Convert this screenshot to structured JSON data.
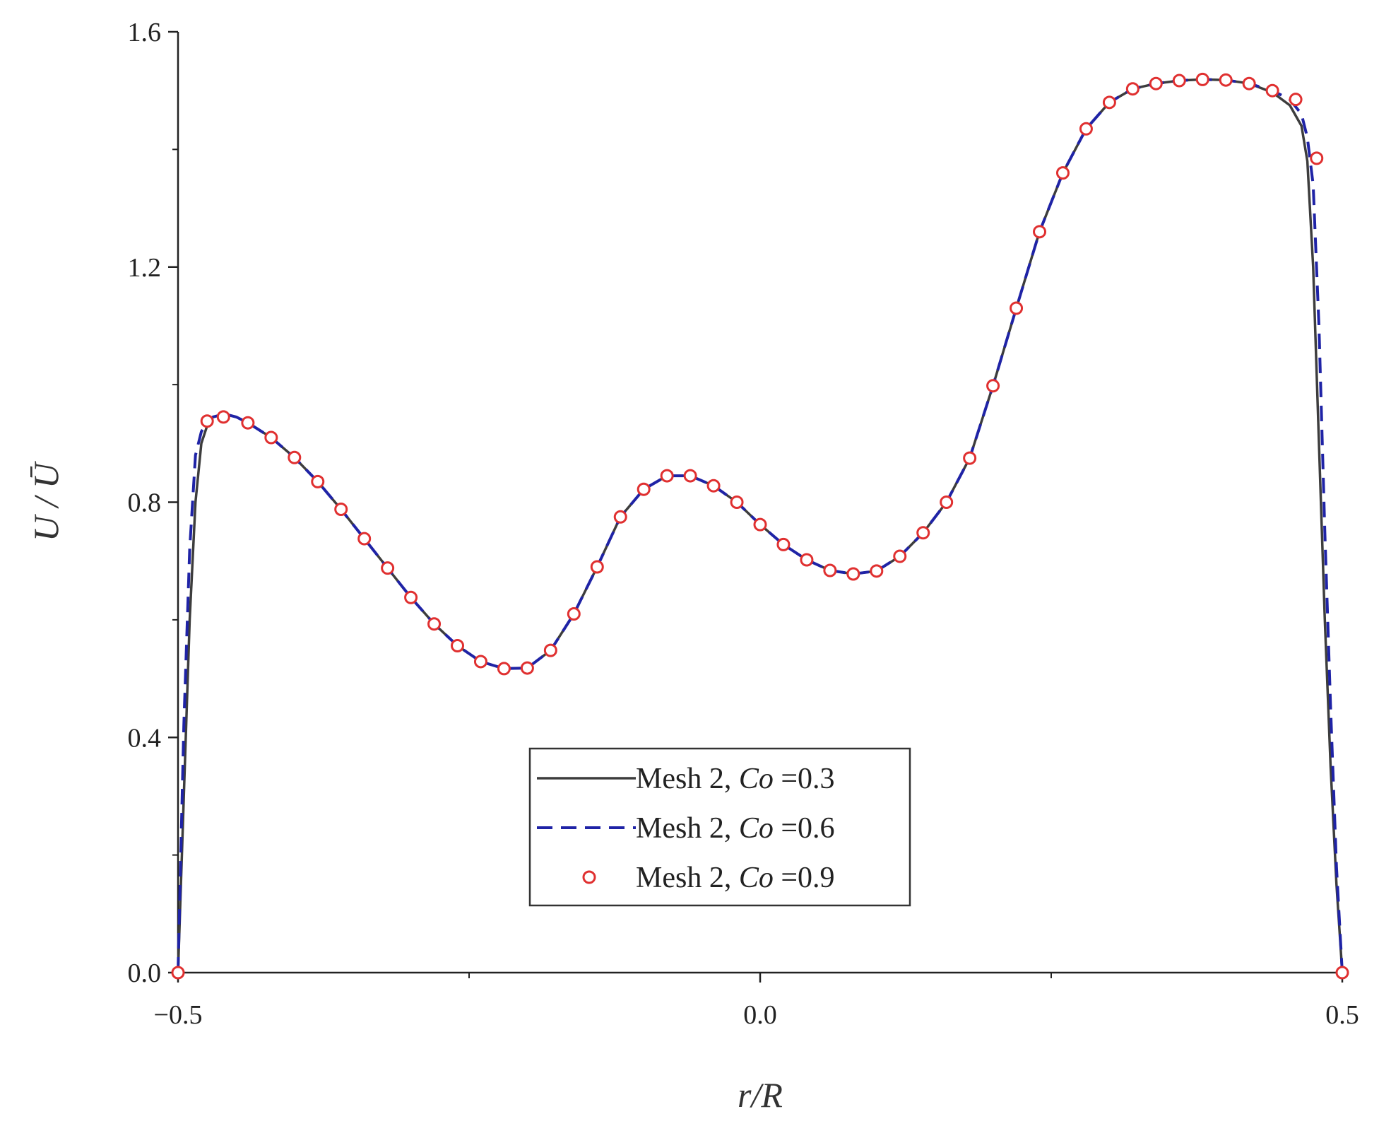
{
  "chart_data": {
    "type": "line",
    "xlabel": "r/R",
    "ylabel": "U / Ū",
    "xlim": [
      -0.5,
      0.5
    ],
    "ylim": [
      0.0,
      1.6
    ],
    "xticks": [
      "−0.5",
      "0.0",
      "0.5"
    ],
    "xtick_values": [
      -0.5,
      0.0,
      0.5
    ],
    "x_minor_ticks": [
      -0.25,
      0.25
    ],
    "yticks": [
      "0.0",
      "0.4",
      "0.8",
      "1.2",
      "1.6"
    ],
    "ytick_values": [
      0.0,
      0.4,
      0.8,
      1.2,
      1.6
    ],
    "y_minor_ticks": [
      0.2,
      0.6,
      1.0,
      1.4
    ],
    "grid": false,
    "legend_position": "bottom-center",
    "series": [
      {
        "name": "Mesh 2, Co =0.3",
        "label_prefix": "Mesh 2, ",
        "label_italic": "Co",
        "label_suffix": " =0.3",
        "style": "solid",
        "color": "#3d3d3d",
        "x": [
          -0.5,
          -0.495,
          -0.49,
          -0.485,
          -0.48,
          -0.475,
          -0.47,
          -0.46,
          -0.45,
          -0.44,
          -0.42,
          -0.4,
          -0.38,
          -0.36,
          -0.34,
          -0.32,
          -0.3,
          -0.28,
          -0.26,
          -0.24,
          -0.22,
          -0.2,
          -0.18,
          -0.16,
          -0.14,
          -0.12,
          -0.1,
          -0.08,
          -0.06,
          -0.04,
          -0.02,
          0.0,
          0.02,
          0.04,
          0.06,
          0.08,
          0.1,
          0.12,
          0.14,
          0.16,
          0.18,
          0.2,
          0.22,
          0.24,
          0.26,
          0.28,
          0.3,
          0.32,
          0.34,
          0.36,
          0.38,
          0.4,
          0.42,
          0.44,
          0.455,
          0.465,
          0.47,
          0.475,
          0.48,
          0.485,
          0.49,
          0.495,
          0.5
        ],
        "y": [
          0.0,
          0.3,
          0.6,
          0.8,
          0.9,
          0.93,
          0.945,
          0.95,
          0.945,
          0.935,
          0.91,
          0.876,
          0.835,
          0.788,
          0.738,
          0.688,
          0.638,
          0.593,
          0.556,
          0.529,
          0.517,
          0.518,
          0.548,
          0.61,
          0.69,
          0.775,
          0.822,
          0.845,
          0.845,
          0.828,
          0.8,
          0.762,
          0.728,
          0.702,
          0.684,
          0.678,
          0.683,
          0.708,
          0.748,
          0.8,
          0.875,
          0.998,
          1.13,
          1.26,
          1.36,
          1.435,
          1.48,
          1.503,
          1.512,
          1.517,
          1.519,
          1.518,
          1.512,
          1.497,
          1.475,
          1.44,
          1.38,
          1.2,
          0.9,
          0.6,
          0.35,
          0.15,
          0.0
        ]
      },
      {
        "name": "Mesh 2, Co =0.6",
        "label_prefix": "Mesh 2, ",
        "label_italic": "Co",
        "label_suffix": " =0.6",
        "style": "dashed",
        "color": "#1f23a6",
        "x": [
          -0.5,
          -0.495,
          -0.49,
          -0.485,
          -0.48,
          -0.475,
          -0.47,
          -0.46,
          -0.45,
          -0.44,
          -0.42,
          -0.4,
          -0.38,
          -0.36,
          -0.34,
          -0.32,
          -0.3,
          -0.28,
          -0.26,
          -0.24,
          -0.22,
          -0.2,
          -0.18,
          -0.16,
          -0.14,
          -0.12,
          -0.1,
          -0.08,
          -0.06,
          -0.04,
          -0.02,
          0.0,
          0.02,
          0.04,
          0.06,
          0.08,
          0.1,
          0.12,
          0.14,
          0.16,
          0.18,
          0.2,
          0.22,
          0.24,
          0.26,
          0.28,
          0.3,
          0.32,
          0.34,
          0.36,
          0.38,
          0.4,
          0.42,
          0.44,
          0.455,
          0.465,
          0.47,
          0.475,
          0.48,
          0.485,
          0.49,
          0.495,
          0.5
        ],
        "y": [
          0.0,
          0.42,
          0.72,
          0.88,
          0.92,
          0.935,
          0.945,
          0.95,
          0.945,
          0.935,
          0.91,
          0.876,
          0.835,
          0.788,
          0.738,
          0.688,
          0.638,
          0.593,
          0.556,
          0.529,
          0.517,
          0.518,
          0.548,
          0.61,
          0.69,
          0.775,
          0.822,
          0.845,
          0.845,
          0.828,
          0.8,
          0.762,
          0.728,
          0.702,
          0.684,
          0.678,
          0.683,
          0.708,
          0.748,
          0.8,
          0.875,
          0.998,
          1.13,
          1.26,
          1.36,
          1.435,
          1.48,
          1.503,
          1.512,
          1.517,
          1.519,
          1.518,
          1.512,
          1.5,
          1.485,
          1.46,
          1.42,
          1.34,
          1.1,
          0.75,
          0.45,
          0.18,
          0.0
        ]
      },
      {
        "name": "Mesh 2, Co =0.9",
        "label_prefix": "Mesh 2, ",
        "label_italic": "Co",
        "label_suffix": " =0.9",
        "style": "markers",
        "color": "#e03030",
        "x": [
          -0.5,
          -0.475,
          -0.461,
          -0.44,
          -0.42,
          -0.4,
          -0.38,
          -0.36,
          -0.34,
          -0.32,
          -0.3,
          -0.28,
          -0.26,
          -0.24,
          -0.22,
          -0.2,
          -0.18,
          -0.16,
          -0.14,
          -0.12,
          -0.1,
          -0.08,
          -0.06,
          -0.04,
          -0.02,
          0.0,
          0.02,
          0.04,
          0.06,
          0.08,
          0.1,
          0.12,
          0.14,
          0.16,
          0.18,
          0.2,
          0.22,
          0.24,
          0.26,
          0.28,
          0.3,
          0.32,
          0.34,
          0.36,
          0.38,
          0.4,
          0.42,
          0.44,
          0.46,
          0.478,
          0.5
        ],
        "y": [
          0.0,
          0.938,
          0.945,
          0.935,
          0.91,
          0.876,
          0.835,
          0.788,
          0.738,
          0.688,
          0.638,
          0.593,
          0.556,
          0.529,
          0.517,
          0.518,
          0.548,
          0.61,
          0.69,
          0.775,
          0.822,
          0.845,
          0.845,
          0.828,
          0.8,
          0.762,
          0.728,
          0.702,
          0.684,
          0.678,
          0.683,
          0.708,
          0.748,
          0.8,
          0.875,
          0.998,
          1.13,
          1.26,
          1.36,
          1.435,
          1.48,
          1.503,
          1.512,
          1.517,
          1.519,
          1.518,
          1.512,
          1.5,
          1.485,
          1.385,
          0.0
        ]
      }
    ]
  }
}
